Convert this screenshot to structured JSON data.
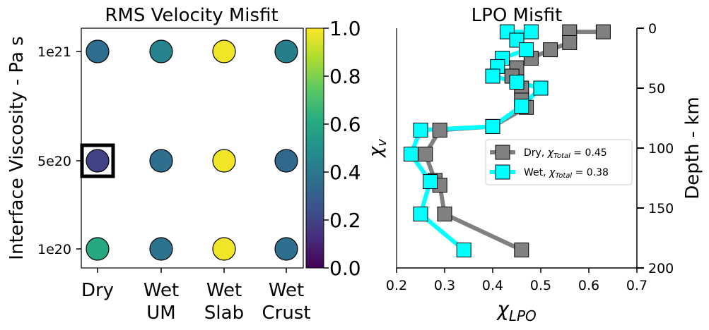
{
  "chart_data": [
    {
      "type": "scatter",
      "title": "RMS Velocity Misfit",
      "ylabel": "Interface Viscosity - Pa s",
      "categories": [
        {
          "line1": "Dry",
          "line2": ""
        },
        {
          "line1": "Wet",
          "line2": "UM"
        },
        {
          "line1": "Wet",
          "line2": "Slab"
        },
        {
          "line1": "Wet",
          "line2": "Crust"
        }
      ],
      "y_levels": [
        "1e21",
        "5e20",
        "1e20"
      ],
      "values": [
        [
          0.36,
          0.44,
          0.98,
          0.42
        ],
        [
          0.2,
          0.36,
          0.98,
          0.34
        ],
        [
          0.6,
          0.38,
          0.98,
          0.36
        ]
      ],
      "highlighted": {
        "row": 1,
        "col": 0
      },
      "colorbar": {
        "label": "χv",
        "range": [
          0.0,
          1.0
        ],
        "ticks": [
          "0.0",
          "0.2",
          "0.4",
          "0.6",
          "0.8",
          "1.0"
        ]
      }
    },
    {
      "type": "line",
      "title": "LPO Misfit",
      "xlabel": "χLPO",
      "ylabel": "Depth - km",
      "xlim": [
        0.2,
        0.7
      ],
      "ylim": [
        200,
        0
      ],
      "x_ticks": [
        "0.2",
        "0.3",
        "0.4",
        "0.5",
        "0.6",
        "0.7"
      ],
      "y_ticks": [
        "0",
        "50",
        "100",
        "150",
        "200"
      ],
      "legend_placement": "center-right",
      "series": [
        {
          "name": "Dry",
          "legend_label": "Dry, χTotal = 0.45",
          "color": "#808080",
          "points": [
            [
              0.63,
              3
            ],
            [
              0.56,
              3
            ],
            [
              0.56,
              12
            ],
            [
              0.52,
              18
            ],
            [
              0.48,
              25
            ],
            [
              0.45,
              33
            ],
            [
              0.44,
              40
            ],
            [
              0.46,
              50
            ],
            [
              0.46,
              60
            ],
            [
              0.47,
              66
            ],
            [
              0.4,
              82
            ],
            [
              0.29,
              85
            ],
            [
              0.26,
              105
            ],
            [
              0.28,
              127
            ],
            [
              0.29,
              131
            ],
            [
              0.3,
              155
            ],
            [
              0.46,
              185
            ]
          ]
        },
        {
          "name": "Wet",
          "legend_label": "Wet, χTotal = 0.38",
          "color": "#00ffff",
          "points": [
            [
              0.43,
              3
            ],
            [
              0.48,
              3
            ],
            [
              0.45,
              10
            ],
            [
              0.47,
              18
            ],
            [
              0.42,
              25
            ],
            [
              0.41,
              32
            ],
            [
              0.4,
              40
            ],
            [
              0.45,
              45
            ],
            [
              0.5,
              50
            ],
            [
              0.46,
              65
            ],
            [
              0.4,
              82
            ],
            [
              0.25,
              85
            ],
            [
              0.23,
              105
            ],
            [
              0.27,
              128
            ],
            [
              0.25,
              155
            ],
            [
              0.34,
              185
            ]
          ]
        }
      ]
    }
  ],
  "colors": {
    "gray_series": "#808080",
    "cyan_series": "#00ffff",
    "highlight_box": "#000000"
  }
}
